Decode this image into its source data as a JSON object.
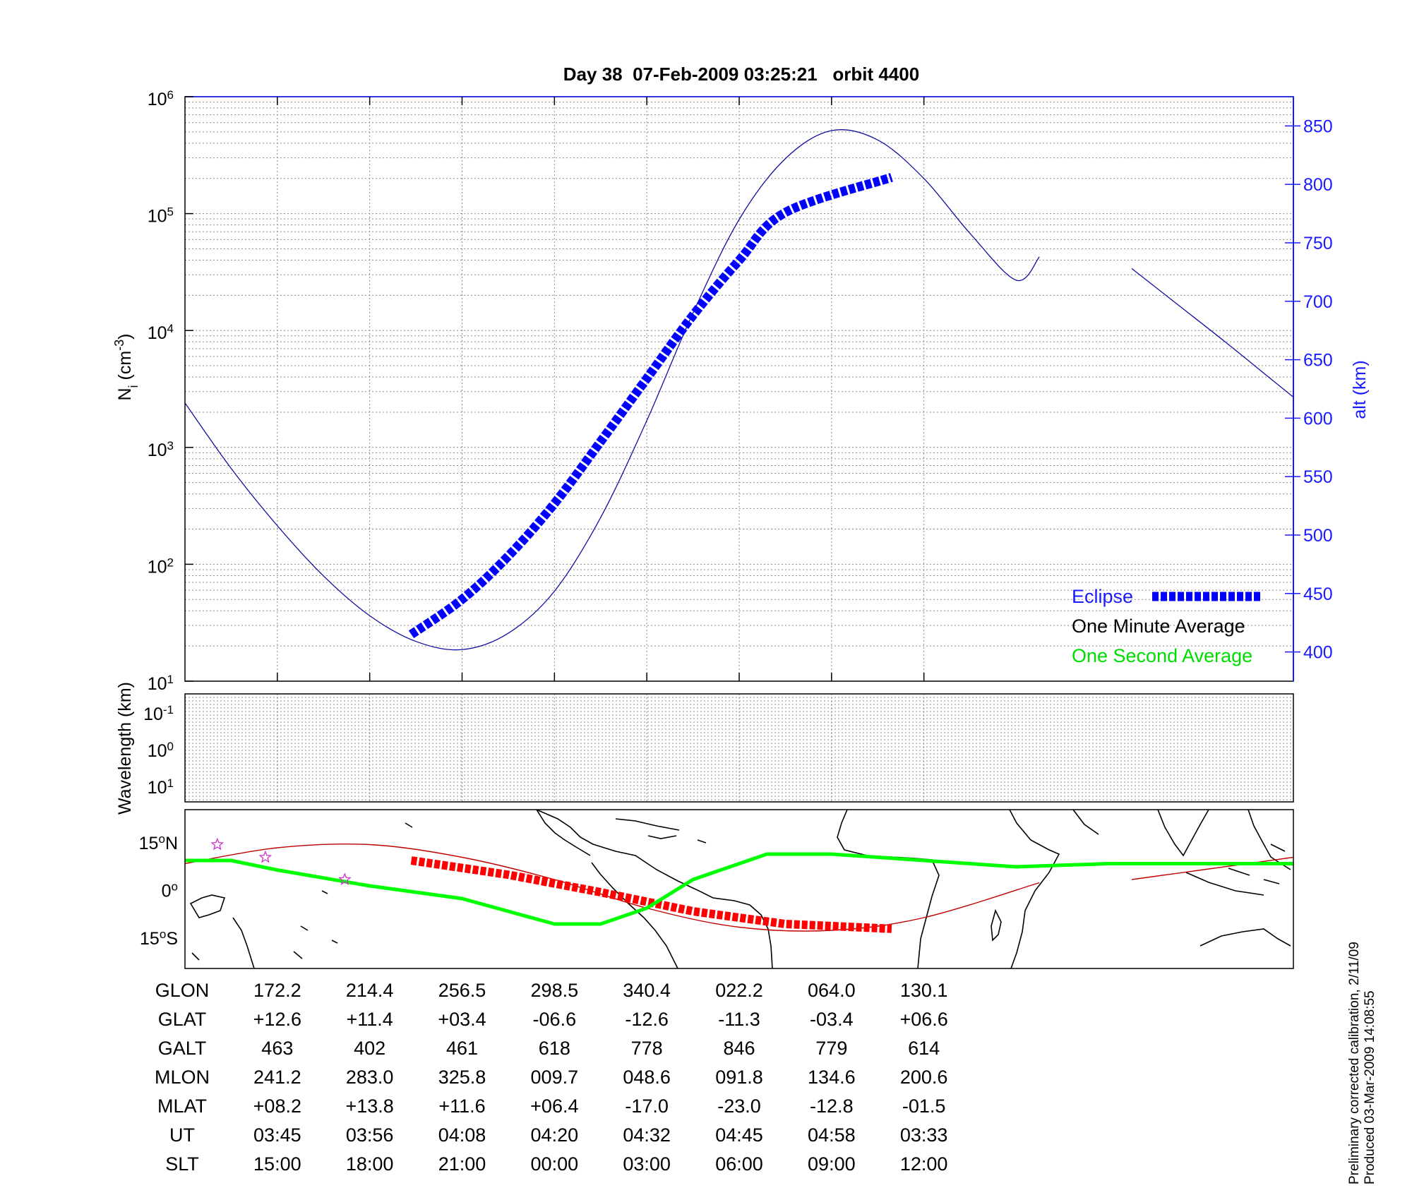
{
  "chart_data": [
    {
      "type": "line",
      "title": "Day 38  07-Feb-2009 03:25:21   orbit 4400",
      "ylabel": "N_i (cm^-3)",
      "ylabel_parts": {
        "base": "N",
        "sub": "i",
        "unit_open": " (cm",
        "sup": "-3",
        "unit_close": ")"
      },
      "y2label": "alt (km)",
      "yscale": "log",
      "ylim": [
        10,
        1000000
      ],
      "y_ticks": [
        {
          "base": "10",
          "exp": "1",
          "value": 10
        },
        {
          "base": "10",
          "exp": "2",
          "value": 100
        },
        {
          "base": "10",
          "exp": "3",
          "value": 1000
        },
        {
          "base": "10",
          "exp": "4",
          "value": 10000
        },
        {
          "base": "10",
          "exp": "5",
          "value": 100000
        },
        {
          "base": "10",
          "exp": "6",
          "value": 1000000
        }
      ],
      "y2lim": [
        375,
        875
      ],
      "y2_ticks": [
        "400",
        "450",
        "500",
        "550",
        "600",
        "650",
        "700",
        "750",
        "800",
        "850"
      ],
      "grid": true,
      "legend_position": "bottom-right",
      "legend": [
        {
          "label": "Eclipse",
          "color": "#0000ff",
          "marker": "thick-dashed"
        },
        {
          "label": "One Minute Average",
          "color": "#000000",
          "marker": "none"
        },
        {
          "label": "One Second Average",
          "color": "#00ff00",
          "marker": "none"
        }
      ],
      "series": [
        {
          "name": "alt (km)",
          "axis": "right",
          "color": "#1010a0",
          "x_slt": [
            0,
            0.5,
            1,
            1.5,
            2,
            2.5,
            3,
            3.5,
            4,
            4.5,
            5,
            5.5,
            6,
            6.5,
            7,
            7.5,
            8,
            8.5,
            9,
            9.25
          ],
          "y": [
            613,
            557,
            508,
            465,
            431,
            409,
            402,
            416,
            452,
            515,
            598,
            690,
            770,
            822,
            846,
            838,
            805,
            758,
            718,
            738
          ]
        },
        {
          "name": "alt (km)",
          "axis": "right",
          "color": "#1010a0",
          "x_slt": [
            10.25,
            10.75,
            11.25,
            11.75,
            12
          ],
          "y": [
            728,
            697,
            666,
            634,
            618
          ]
        },
        {
          "name": "Eclipse",
          "axis": "right",
          "color": "#0000ff",
          "x_slt": [
            2.45,
            3,
            3.5,
            4,
            4.5,
            5,
            5.5,
            6,
            6.5,
            7.65
          ],
          "y": [
            415,
            445,
            482,
            527,
            580,
            634,
            688,
            735,
            776,
            806
          ]
        }
      ]
    },
    {
      "type": "heatmap",
      "ylabel": "Wavelength (km)",
      "y_ticks": [
        {
          "base": "10",
          "exp": "-1"
        },
        {
          "base": "10",
          "exp": "0"
        },
        {
          "base": "10",
          "exp": "1"
        }
      ],
      "grid": true
    },
    {
      "type": "line",
      "description_axis": "geographic latitude map",
      "y_ticks": [
        {
          "num": "15",
          "deg": "o",
          "suffix": "N",
          "value": 15
        },
        {
          "num": "0",
          "deg": "o",
          "suffix": "",
          "value": 0
        },
        {
          "num": "15",
          "deg": "o",
          "suffix": "S",
          "value": -15
        }
      ],
      "ylim": [
        -25,
        25
      ],
      "series": [
        {
          "name": "track",
          "color": "#c00000",
          "x_slt": [
            0,
            1,
            2,
            3,
            4,
            5,
            6,
            7,
            8,
            9.25
          ],
          "y": [
            8,
            13,
            14,
            10,
            3,
            -6,
            -12,
            -13,
            -9,
            2
          ]
        },
        {
          "name": "track",
          "color": "#c00000",
          "x_slt": [
            9.25
          ],
          "y": [
            2
          ]
        },
        {
          "name": "track",
          "color": "#c00000",
          "x_slt": [
            10.25,
            11,
            12
          ],
          "y": [
            3,
            6,
            10
          ]
        },
        {
          "name": "Eclipse",
          "color": "#ff0000",
          "x_slt": [
            2.45,
            3.5,
            4.5,
            5.5,
            6.5,
            7.65
          ],
          "y": [
            9,
            4.5,
            -1,
            -7,
            -11,
            -12.5
          ]
        },
        {
          "name": "One Second Average",
          "color": "#00ff00",
          "x_slt": [
            0,
            0.5,
            1,
            2,
            3,
            4,
            4.5,
            5,
            5.5,
            6,
            6.3,
            7,
            8,
            9,
            10,
            11,
            12
          ],
          "y": [
            9,
            9,
            6,
            1,
            -3,
            -11,
            -11,
            -6,
            3,
            8,
            11,
            11,
            9,
            7,
            8,
            8,
            8
          ]
        }
      ],
      "stars": [
        {
          "x_slt": 0.35,
          "y": 14
        },
        {
          "x_slt": 0.87,
          "y": 10
        },
        {
          "x_slt": 1.73,
          "y": 3
        }
      ]
    }
  ],
  "x_slt_domain": [
    0,
    12
  ],
  "table": {
    "rows": [
      {
        "label": "GLON",
        "values": [
          "172.2",
          "214.4",
          "256.5",
          "298.5",
          "340.4",
          "022.2",
          "064.0",
          "130.1"
        ]
      },
      {
        "label": "GLAT",
        "values": [
          "+12.6",
          "+11.4",
          "+03.4",
          "-06.6",
          "-12.6",
          "-11.3",
          "-03.4",
          "+06.6"
        ]
      },
      {
        "label": "GALT",
        "values": [
          "463",
          "402",
          "461",
          "618",
          "778",
          "846",
          "779",
          "614"
        ]
      },
      {
        "label": "MLON",
        "values": [
          "241.2",
          "283.0",
          "325.8",
          "009.7",
          "048.6",
          "091.8",
          "134.6",
          "200.6"
        ]
      },
      {
        "label": "MLAT",
        "values": [
          "+08.2",
          "+13.8",
          "+11.6",
          "+06.4",
          "-17.0",
          "-23.0",
          "-12.8",
          "-01.5"
        ]
      },
      {
        "label": "UT",
        "values": [
          "03:45",
          "03:56",
          "04:08",
          "04:20",
          "04:32",
          "04:45",
          "04:58",
          "03:33"
        ]
      },
      {
        "label": "SLT",
        "values": [
          "15:00",
          "18:00",
          "21:00",
          "00:00",
          "03:00",
          "06:00",
          "09:00",
          "12:00"
        ]
      }
    ],
    "column_slt": [
      1,
      2,
      3,
      4,
      5,
      6,
      7,
      8
    ]
  },
  "notes": [
    "Preliminary corrected calibration, 2/11/09",
    "Produced 03-Mar-2009 14:08:55"
  ],
  "colors": {
    "axis_right": "#1a1aff",
    "eclipse": "#0000ff",
    "minute": "#000000",
    "second": "#00ff00",
    "track": "#c00000",
    "track_eclipse": "#ff0000",
    "star": "#cc33cc"
  }
}
